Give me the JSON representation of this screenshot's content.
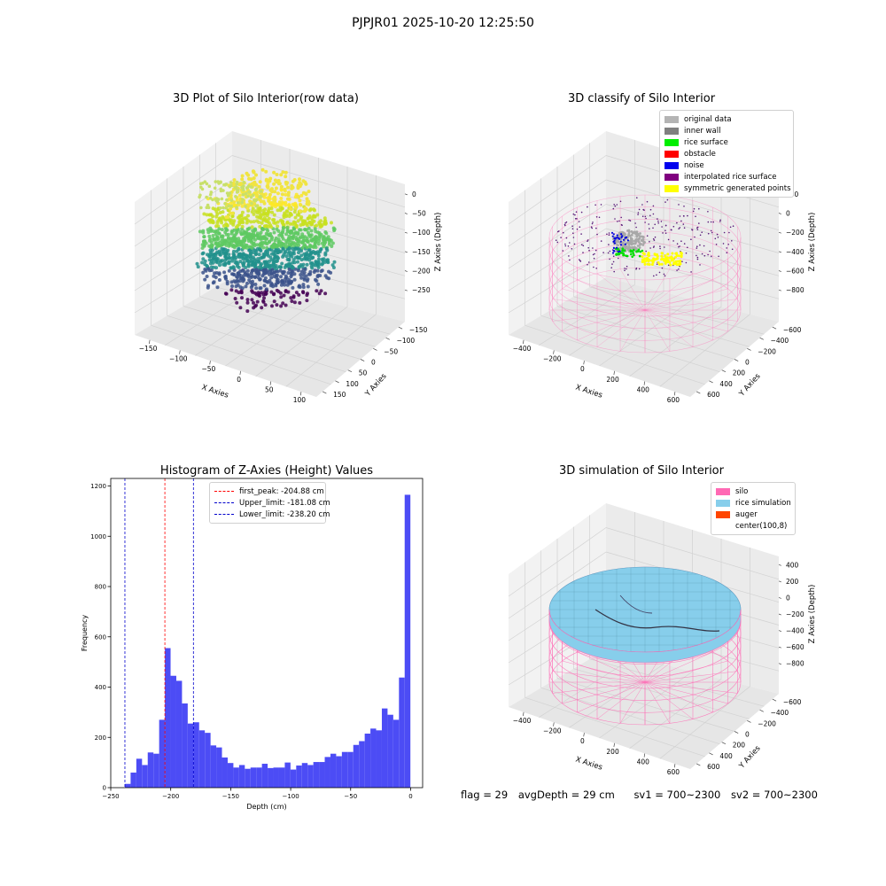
{
  "page": {
    "title": "PJPJR01 2025-10-20 12:25:50"
  },
  "panels": {
    "raw": {
      "title": "3D Plot of Silo Interior(row data)",
      "xlabel": "X Axies",
      "ylabel": "Y Axies",
      "zlabel": "Z Axies (Depth)",
      "xticks": [
        "−150",
        "−100",
        "−50",
        "0",
        "50",
        "100"
      ],
      "yticks": [
        "150",
        "100",
        "50",
        "0",
        "−50",
        "−100",
        "−150"
      ],
      "zticks": [
        "0",
        "−50",
        "−100",
        "−150",
        "−200",
        "−250"
      ]
    },
    "classify": {
      "title": "3D classify of Silo Interior",
      "xlabel": "X Axies",
      "ylabel": "Y Axies",
      "zlabel": "Z Axies (Depth)",
      "xticks": [
        "−400",
        "−200",
        "0",
        "200",
        "400",
        "600"
      ],
      "yticks": [
        "600",
        "400",
        "200",
        "0",
        "−200",
        "−400",
        "−600"
      ],
      "zticks": [
        "200",
        "0",
        "−200",
        "−400",
        "−600",
        "−800"
      ],
      "legend": [
        {
          "label": "original data",
          "color": "#b4b4b4"
        },
        {
          "label": "inner wall",
          "color": "#808080"
        },
        {
          "label": "rice surface",
          "color": "#00ee00"
        },
        {
          "label": "obstacle",
          "color": "#ff0000"
        },
        {
          "label": "noise",
          "color": "#0000ee"
        },
        {
          "label": "interpolated rice surface",
          "color": "#800080"
        },
        {
          "label": "symmetric generated points",
          "color": "#ffff00"
        }
      ]
    },
    "simulation": {
      "title": "3D simulation of Silo Interior",
      "xlabel": "X Axies",
      "ylabel": "Y Axies",
      "zlabel": "Z Axies (Depth)",
      "xticks": [
        "−400",
        "−200",
        "0",
        "200",
        "400",
        "600"
      ],
      "yticks": [
        "600",
        "400",
        "200",
        "0",
        "−200",
        "−400",
        "−600"
      ],
      "zticks": [
        "400",
        "200",
        "0",
        "−200",
        "−400",
        "−600",
        "−800"
      ],
      "legend": [
        {
          "label": "silo",
          "color": "#ff69b4"
        },
        {
          "label": "rice simulation",
          "color": "#87ceeb"
        },
        {
          "label": "auger",
          "color": "#ff4500"
        },
        {
          "label": "center(100,8)",
          "color": "#ffffff"
        }
      ]
    }
  },
  "footer": {
    "flag": "flag = 29",
    "avg": "avgDepth = 29 cm",
    "sv1": "sv1 = 700~2300",
    "sv2": "sv2 = 700~2300"
  },
  "chart_data": [
    {
      "type": "bar",
      "title": "Histogram of Z-Axies (Height) Values",
      "xlabel": "Depth (cm)",
      "ylabel": "Frequency",
      "xlim": [
        -250,
        10
      ],
      "ylim": [
        0,
        1230
      ],
      "xticks": [
        -250,
        -200,
        -150,
        -100,
        -50,
        0
      ],
      "yticks": [
        0,
        200,
        400,
        600,
        800,
        1000,
        1200
      ],
      "bin_start": -238.2,
      "bin_width": 4.76,
      "color": "#4c4cf5",
      "values": [
        15,
        60,
        115,
        90,
        140,
        135,
        270,
        555,
        445,
        425,
        335,
        255,
        260,
        228,
        218,
        168,
        160,
        120,
        98,
        80,
        90,
        75,
        80,
        80,
        95,
        78,
        80,
        80,
        100,
        72,
        88,
        98,
        90,
        102,
        102,
        122,
        135,
        125,
        142,
        142,
        170,
        185,
        215,
        235,
        228,
        315,
        290,
        270,
        438,
        1165
      ],
      "vlines": [
        {
          "label": "first_peak: -204.88 cm",
          "x": -204.88,
          "color": "#ff0000"
        },
        {
          "label": "Upper_limit: -181.08 cm",
          "x": -181.08,
          "color": "#0000cc"
        },
        {
          "label": "Lower_limit: -238.20 cm",
          "x": -238.2,
          "color": "#0000cc"
        }
      ]
    }
  ]
}
